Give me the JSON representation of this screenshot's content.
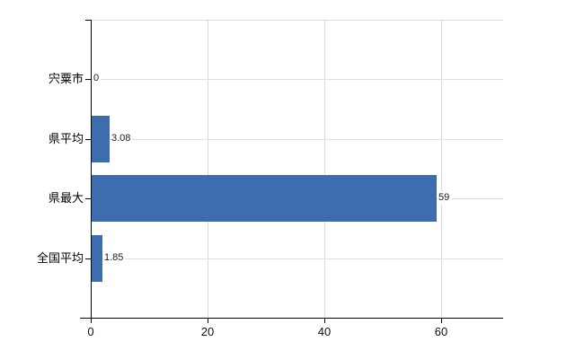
{
  "chart_data": {
    "type": "bar",
    "orientation": "horizontal",
    "title": "",
    "xlabel": "",
    "ylabel": "",
    "categories": [
      "宍粟市",
      "県平均",
      "県最大",
      "全国平均"
    ],
    "values": [
      0,
      3.08,
      59,
      1.85
    ],
    "value_labels": [
      "0",
      "3.08",
      "59",
      "1.85"
    ],
    "x_ticks": [
      {
        "value": 0,
        "label": "0"
      },
      {
        "value": 20,
        "label": "20"
      },
      {
        "value": 40,
        "label": "40"
      },
      {
        "value": 60,
        "label": "60"
      }
    ],
    "xlim": [
      0,
      70.6
    ],
    "grid": true,
    "legend_visible": false,
    "colors": {
      "bar": "#3d6daf",
      "axis": "#000000",
      "gridline_vertical": "#d9d9d9",
      "gridline_horizontal": "#dbe1db",
      "plot_top_border": "#d9d9d9",
      "background": "#ffffff",
      "text": "#000000"
    }
  }
}
